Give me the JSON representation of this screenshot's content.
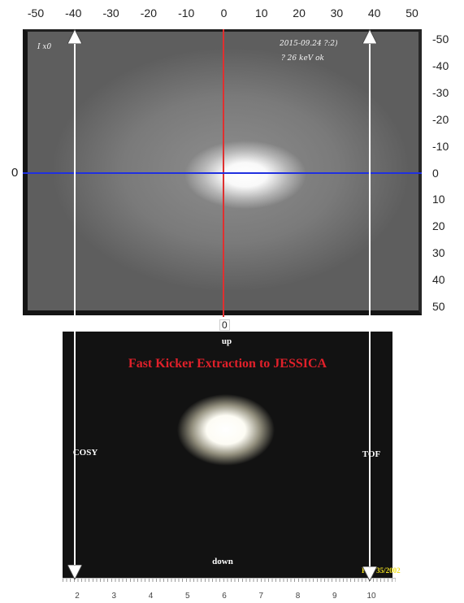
{
  "top_scale": {
    "x_ticks": [
      "-50",
      "-40",
      "-30",
      "-20",
      "-10",
      "0",
      "10",
      "20",
      "30",
      "40",
      "50"
    ],
    "y_ticks": [
      "-50",
      "-40",
      "-30",
      "-20",
      "-10",
      "0",
      "10",
      "20",
      "30",
      "40",
      "50"
    ],
    "zero_left_label": "0",
    "zero_bottom_label": "0"
  },
  "top_photo": {
    "handwriting_line1": "2015-09.24  ?:2)",
    "handwriting_line2": "? 26 keV  ok",
    "corner_mark": "I x0"
  },
  "bottom_photo": {
    "title": "Fast Kicker Extraction to JESSICA",
    "label_up": "up",
    "label_down": "down",
    "label_left": "COSY",
    "label_right": "TOF",
    "stamp": "KW 35/2002"
  },
  "bottom_ruler": {
    "ticks": [
      "2",
      "3",
      "4",
      "5",
      "6",
      "7",
      "8",
      "9",
      "10"
    ]
  },
  "colors": {
    "vertical_axis_line": "#e03030",
    "horizontal_axis_line": "#2030e0",
    "arrows": "#ffffff",
    "title_text": "#e0202a",
    "stamp_text": "#f0e020"
  }
}
